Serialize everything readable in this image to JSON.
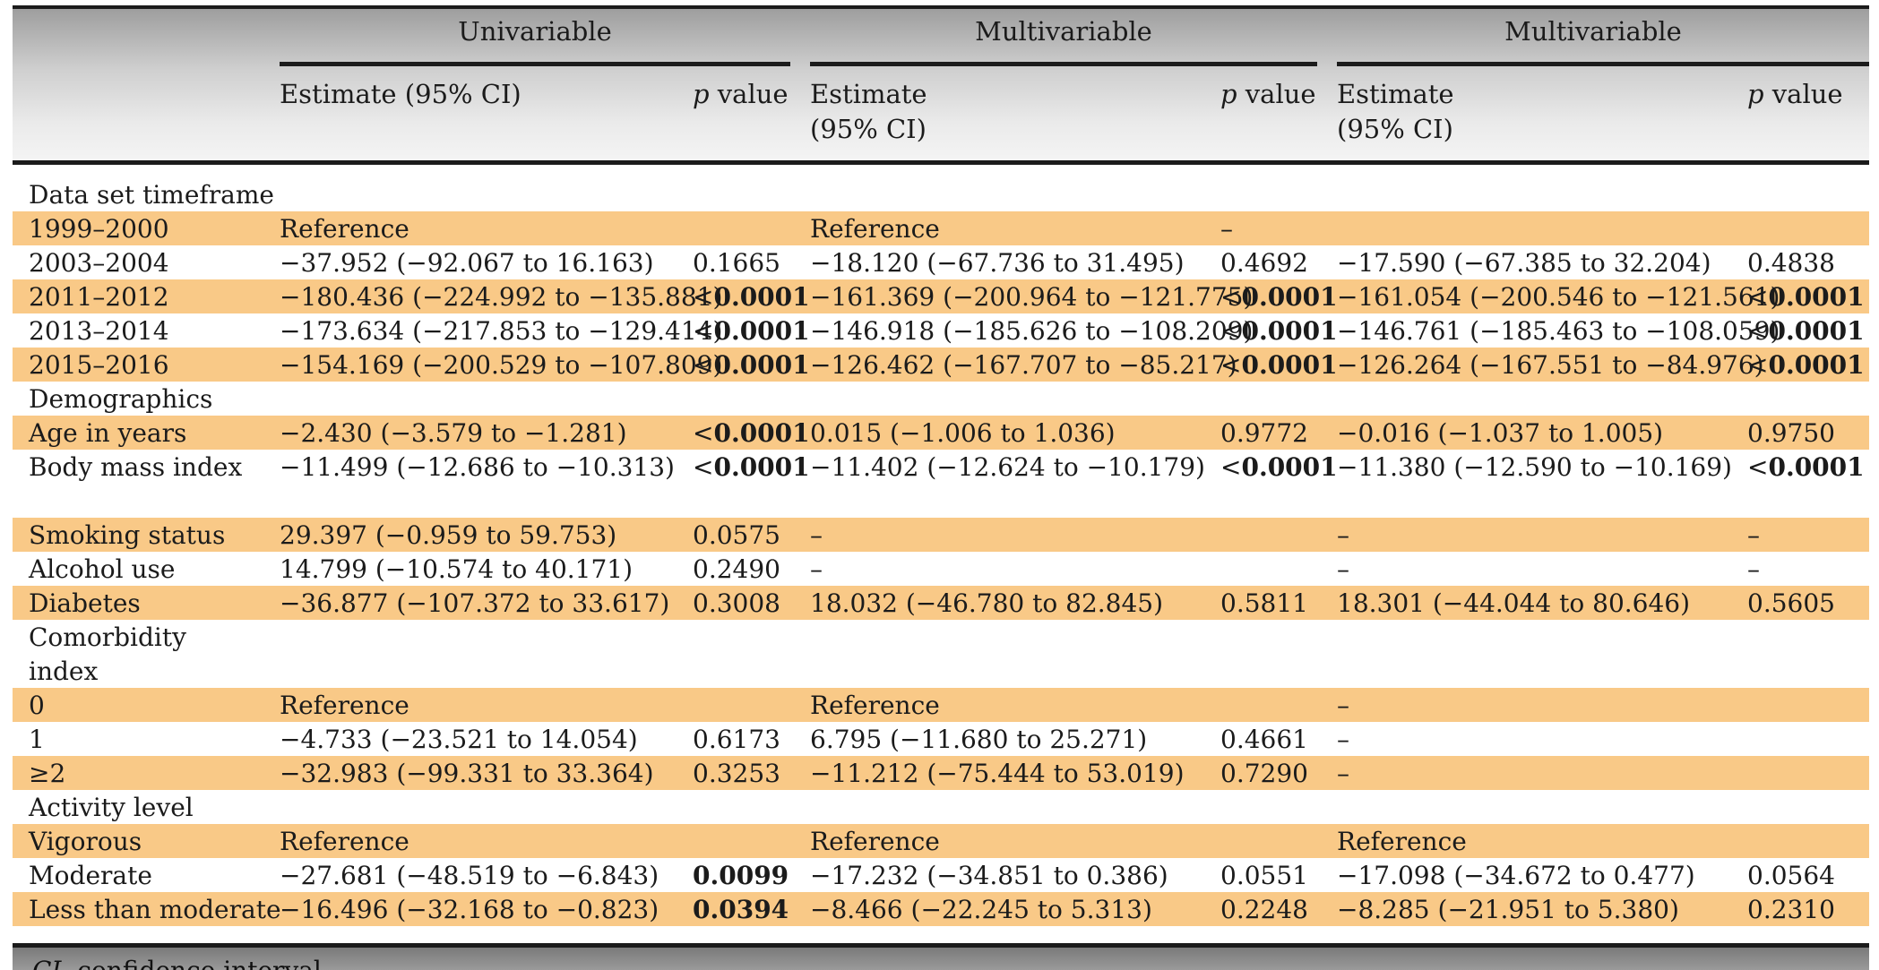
{
  "table": {
    "groups": [
      {
        "title": "Univariable",
        "estimate_label": "Estimate (95% CI)",
        "p_prefix": "p",
        "p_suffix": " value"
      },
      {
        "title": "Multivariable",
        "estimate_label_line1": "Estimate",
        "estimate_label_line2": "(95% CI)",
        "p_prefix": "p",
        "p_suffix": " value"
      },
      {
        "title": "Multivariable",
        "estimate_label_line1": "Estimate",
        "estimate_label_line2": "(95% CI)",
        "p_prefix": "p",
        "p_suffix": " value"
      }
    ],
    "rows": [
      {
        "label": "Data set timeframe",
        "shade": false,
        "cells": [
          "",
          "",
          "",
          "",
          "",
          ""
        ]
      },
      {
        "label": "1999–2000",
        "shade": true,
        "cells": [
          "Reference",
          "",
          "Reference",
          "–",
          "",
          ""
        ]
      },
      {
        "label": "2003–2004",
        "shade": false,
        "cells": [
          "−37.952 (−92.067 to 16.163)",
          "0.1665",
          "−18.120 (−67.736 to 31.495)",
          "0.4692",
          "−17.590 (−67.385 to 32.204)",
          "0.4838"
        ]
      },
      {
        "label": "2011–2012",
        "shade": true,
        "cells": [
          "−180.436 (−224.992 to −135.881)",
          "<0.0001",
          "−161.369 (−200.964 to −121.775)",
          "<0.0001",
          "−161.054 (−200.546 to −121.561)",
          "<0.0001"
        ]
      },
      {
        "label": "2013–2014",
        "shade": false,
        "cells": [
          "−173.634 (−217.853 to −129.414)",
          "<0.0001",
          "−146.918 (−185.626 to −108.209)",
          "<0.0001",
          "−146.761 (−185.463 to −108.059)",
          "<0.0001"
        ]
      },
      {
        "label": "2015–2016",
        "shade": true,
        "cells": [
          "−154.169 (−200.529 to −107.809)",
          "<0.0001",
          "−126.462 (−167.707 to −85.217)",
          "<0.0001",
          "−126.264 (−167.551 to −84.976)",
          "<0.0001"
        ]
      },
      {
        "label": "Demographics",
        "shade": false,
        "cells": [
          "",
          "",
          "",
          "",
          "",
          ""
        ]
      },
      {
        "label": "Age in years",
        "shade": true,
        "cells": [
          "−2.430 (−3.579 to −1.281)",
          "<0.0001",
          "0.015 (−1.006 to 1.036)",
          "0.9772",
          "−0.016 (−1.037 to 1.005)",
          "0.9750"
        ]
      },
      {
        "label": "Body mass index",
        "shade": false,
        "tall": true,
        "cells": [
          "−11.499 (−12.686 to −10.313)",
          "<0.0001",
          "−11.402 (−12.624 to −10.179)",
          "<0.0001",
          "−11.380 (−12.590 to −10.169)",
          "<0.0001"
        ]
      },
      {
        "label": "Smoking status",
        "shade": true,
        "cells": [
          "29.397 (−0.959 to 59.753)",
          "0.0575",
          "–",
          "",
          "–",
          "–"
        ]
      },
      {
        "label": "Alcohol use",
        "shade": false,
        "cells": [
          "14.799 (−10.574 to 40.171)",
          "0.2490",
          "–",
          "",
          "–",
          "–"
        ]
      },
      {
        "label": "Diabetes",
        "shade": true,
        "cells": [
          "−36.877 (−107.372 to 33.617)",
          "0.3008",
          "18.032 (−46.780 to 82.845)",
          "0.5811",
          "18.301 (−44.044 to 80.646)",
          "0.5605"
        ]
      },
      {
        "label": "Comorbidity index",
        "shade": false,
        "tall": true,
        "cells": [
          "",
          "",
          "",
          "",
          "",
          ""
        ]
      },
      {
        "label": "0",
        "shade": true,
        "cells": [
          "Reference",
          "",
          "Reference",
          "",
          "–",
          ""
        ]
      },
      {
        "label": "1",
        "shade": false,
        "cells": [
          "−4.733 (−23.521 to 14.054)",
          "0.6173",
          "6.795 (−11.680 to 25.271)",
          "0.4661",
          "–",
          ""
        ]
      },
      {
        "label": "≥2",
        "shade": true,
        "cells": [
          "−32.983 (−99.331 to 33.364)",
          "0.3253",
          "−11.212 (−75.444 to 53.019)",
          "0.7290",
          "–",
          ""
        ]
      },
      {
        "label": "Activity level",
        "shade": false,
        "cells": [
          "",
          "",
          "",
          "",
          "",
          ""
        ]
      },
      {
        "label": "Vigorous",
        "shade": true,
        "cells": [
          "Reference",
          "",
          "Reference",
          "",
          "Reference",
          ""
        ]
      },
      {
        "label": "Moderate",
        "shade": false,
        "cells": [
          "−27.681 (−48.519 to −6.843)",
          "0.0099",
          "−17.232 (−34.851 to 0.386)",
          "0.0551",
          "−17.098 (−34.672 to 0.477)",
          "0.0564"
        ]
      },
      {
        "label": "Less than moderate",
        "shade": true,
        "cells": [
          "−16.496 (−32.168 to −0.823)",
          "0.0394",
          "−8.466 (−22.245 to 5.313)",
          "0.2248",
          "−8.285 (−21.951 to 5.380)",
          "0.2310"
        ]
      }
    ],
    "bold_values": [
      "<0.0001",
      "0.0099",
      "0.0394"
    ]
  },
  "footnote": {
    "abbr": "CI",
    "text": ", confidence interval."
  }
}
